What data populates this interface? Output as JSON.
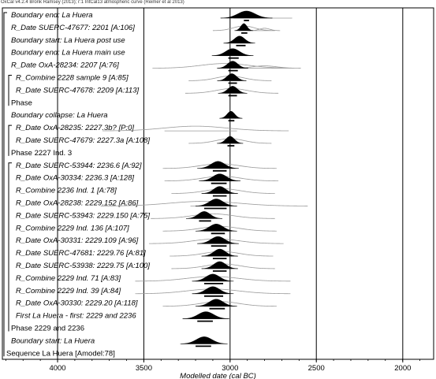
{
  "header": "OxCal v4.2.4 Bronk Ramsey (2013); r:1 IntCal13 atmospheric curve (Reimer et al 2013)",
  "chart_data": {
    "type": "oxcal_multiplot",
    "x_axis": {
      "label": "Modelled date (cal BC)",
      "min": 4320,
      "max": 1820,
      "ticks": [
        "4000",
        "3500",
        "3000",
        "2500",
        "2000"
      ],
      "tick_values": [
        4000,
        3500,
        3000,
        2500,
        1999
      ]
    },
    "rows": [
      {
        "label": "Boundary end: La Huera",
        "italic": true,
        "kind": "dist",
        "posterior": [
          2905,
          50
        ],
        "range": [
          2980,
          2640
        ],
        "bar": [
          2920,
          2890
        ]
      },
      {
        "label": "R_Date SUERC-47677: 2201 [A:106]",
        "italic": true,
        "kind": "dist",
        "posterior": [
          2920,
          18
        ],
        "prior": [
          2920,
          60,
          2800
        ],
        "range": [
          2950,
          2880
        ],
        "bar": [
          2935,
          2900
        ]
      },
      {
        "label": "Boundary start: La Huera post use",
        "italic": true,
        "kind": "dist",
        "posterior": [
          2945,
          30
        ],
        "range": [
          3040,
          2880
        ],
        "bar": [
          2965,
          2910
        ]
      },
      {
        "label": "Boundary end: La Huera main use",
        "italic": true,
        "kind": "dist",
        "posterior": [
          2985,
          40
        ],
        "range": [
          3060,
          2900
        ],
        "bar": [
          3010,
          2950
        ]
      },
      {
        "label": "R_Date OxA-28234: 2207 [A:76]",
        "italic": true,
        "kind": "dist",
        "posterior": [
          2985,
          30
        ],
        "prior": [
          3030,
          140,
          2800
        ],
        "range": [
          3040,
          2920
        ],
        "bar": [
          3010,
          2955
        ]
      },
      {
        "label": "R_Combine 2228 sample 9 [A:85]",
        "italic": true,
        "kind": "dist",
        "posterior": [
          2990,
          28
        ],
        "prior": [
          3000,
          80
        ],
        "range": [
          3030,
          2940
        ],
        "bar": [
          3010,
          2960
        ]
      },
      {
        "label": "R_Date SUERC-47678: 2209 [A:113]",
        "italic": true,
        "kind": "dist",
        "posterior": [
          2985,
          28
        ],
        "prior": [
          2990,
          90
        ],
        "range": [
          3030,
          2940
        ],
        "bar": [
          3010,
          2960
        ]
      },
      {
        "label": "Phase",
        "italic": false,
        "kind": "none"
      },
      {
        "label": "Boundary collapse: La Huera",
        "italic": true,
        "kind": "dist",
        "posterior": [
          2995,
          22
        ],
        "range": [
          3030,
          2965
        ],
        "bar": [
          3010,
          2975
        ]
      },
      {
        "label": "R_Date OxA-28235: 2227.3b? [P:0]",
        "italic": true,
        "kind": "dist",
        "prior": [
          3200,
          180
        ],
        "range": [
          3380,
          2960
        ]
      },
      {
        "label": "R_Date SUERC-47679: 2227.3a [A:108]",
        "italic": true,
        "kind": "dist",
        "posterior": [
          3000,
          25
        ],
        "prior": [
          3000,
          80
        ],
        "range": [
          3040,
          2950
        ],
        "bar": [
          3015,
          2975
        ]
      },
      {
        "label": "Phase 2227 Ind. 3",
        "italic": false,
        "kind": "none"
      },
      {
        "label": "R_Date SUERC-53944: 2236.6 [A:92]",
        "italic": true,
        "kind": "dist",
        "posterior": [
          3070,
          40
        ],
        "prior": [
          3060,
          110
        ],
        "range": [
          3130,
          2980
        ],
        "bar": [
          3100,
          3020
        ]
      },
      {
        "label": "R_Date OxA-30334: 2236.3 [A:128]",
        "italic": true,
        "kind": "dist",
        "posterior": [
          3060,
          40
        ],
        "prior": [
          3050,
          110
        ],
        "range": [
          3140,
          2990
        ],
        "bar": [
          3110,
          3020
        ]
      },
      {
        "label": "R_Combine 2236 Ind. 1 [A:78]",
        "italic": true,
        "kind": "dist",
        "posterior": [
          3060,
          35
        ],
        "prior": [
          3040,
          100
        ],
        "range": [
          3130,
          3000
        ],
        "bar": [
          3100,
          3020
        ]
      },
      {
        "label": "R_Date OxA-28238: 2229.152 [A:86]",
        "italic": true,
        "kind": "dist",
        "posterior": [
          3080,
          40
        ],
        "prior": [
          3150,
          200
        ],
        "range": [
          3230,
          2990
        ],
        "bar": [
          3150,
          3020
        ]
      },
      {
        "label": "R_Date SUERC-53943: 2229.150 [A:75]",
        "italic": true,
        "kind": "dist",
        "posterior": [
          3150,
          35
        ],
        "prior": [
          3100,
          120
        ],
        "range": [
          3210,
          3090
        ],
        "bar": [
          3180,
          3110
        ]
      },
      {
        "label": "R_Combine 2229 Ind. 136 [A:107]",
        "italic": true,
        "kind": "dist",
        "posterior": [
          3080,
          40
        ],
        "prior": [
          3060,
          110
        ],
        "range": [
          3150,
          2990
        ],
        "bar": [
          3110,
          3030
        ]
      },
      {
        "label": "R_Date OxA-30331: 2229.109 [A:96]",
        "italic": true,
        "kind": "dist",
        "posterior": [
          3070,
          40
        ],
        "prior": [
          3080,
          130
        ],
        "range": [
          3150,
          2990
        ],
        "bar": [
          3110,
          3020
        ]
      },
      {
        "label": "R_Date SUERC-47681: 2229.76 [A:81]",
        "italic": true,
        "kind": "dist",
        "posterior": [
          3060,
          35
        ],
        "prior": [
          3050,
          100
        ],
        "range": [
          3130,
          2990
        ],
        "bar": [
          3100,
          3020
        ]
      },
      {
        "label": "R_Date SUERC-53938: 2229.75 [A:100]",
        "italic": true,
        "kind": "dist",
        "posterior": [
          3060,
          35
        ],
        "prior": [
          3040,
          100
        ],
        "range": [
          3130,
          2990
        ],
        "bar": [
          3100,
          3020
        ]
      },
      {
        "label": "R_Combine 2229 Ind. 71 [A:83]",
        "italic": true,
        "kind": "dist",
        "posterior": [
          3100,
          40
        ],
        "prior": [
          3100,
          150
        ],
        "range": [
          3220,
          3000
        ],
        "bar": [
          3150,
          3040
        ]
      },
      {
        "label": "R_Combine 2229 Ind. 39 [A:84]",
        "italic": true,
        "kind": "dist",
        "posterior": [
          3100,
          40
        ],
        "prior": [
          3100,
          150
        ],
        "range": [
          3220,
          3000
        ],
        "bar": [
          3150,
          3040
        ]
      },
      {
        "label": "R_Date OxA-30330: 2229.20 [A:118]",
        "italic": true,
        "kind": "dist",
        "posterior": [
          3080,
          40
        ],
        "prior": [
          3060,
          110
        ],
        "range": [
          3150,
          3000
        ],
        "bar": [
          3120,
          3030
        ]
      },
      {
        "label": "First La Huera - first: 2229 and 2236",
        "italic": true,
        "kind": "dist",
        "posterior": [
          3140,
          45
        ],
        "range": [
          3240,
          3060
        ],
        "bar": [
          3190,
          3100
        ]
      },
      {
        "label": "Phase 2229 and 2236",
        "italic": false,
        "kind": "none"
      },
      {
        "label": "Boundary start: La Huera",
        "italic": true,
        "kind": "dist",
        "posterior": [
          3150,
          45
        ],
        "range": [
          3290,
          3080
        ],
        "bar": [
          3200,
          3110
        ]
      },
      {
        "label": "Sequence La Huera [Amodel:78]",
        "italic": false,
        "kind": "none"
      }
    ],
    "brackets": [
      {
        "from": 5,
        "to": 7,
        "level": 1
      },
      {
        "from": 9,
        "to": 11,
        "level": 1
      },
      {
        "from": 12,
        "to": 25,
        "level": 1
      },
      {
        "from": 0,
        "to": 27,
        "level": 0
      }
    ]
  }
}
